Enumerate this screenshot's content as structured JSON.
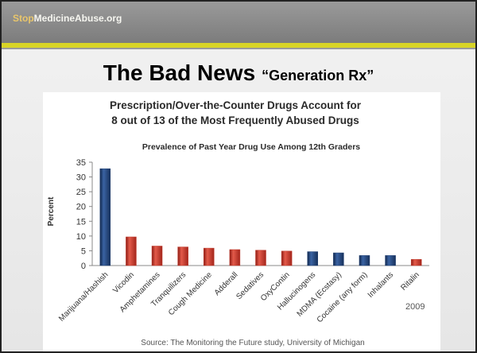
{
  "header": {
    "brand_accent": "Stop",
    "brand_rest": "MedicineAbuse.org"
  },
  "title": {
    "main": "The Bad News",
    "sub": "“Generation Rx”"
  },
  "chart_data": {
    "type": "bar",
    "title_line1": "Prescription/Over-the-Counter Drugs Account for",
    "title_line2": "8 out of 13 of the Most Frequently Abused Drugs",
    "subtitle": "Prevalence of Past Year Drug Use Among 12th Graders",
    "ylabel": "Percent",
    "ylim": [
      0,
      35
    ],
    "yticks": [
      0,
      5,
      10,
      15,
      20,
      25,
      30,
      35
    ],
    "categories": [
      "Marijuana/Hashish",
      "Vicodin",
      "Amphetamines",
      "Tranquilizers",
      "Cough Medicine",
      "Adderall",
      "Sedatives",
      "OxyContin",
      "Hallucinogens",
      "MDMA (Ecstasy)",
      "Cocaine (any form)",
      "Inhalants",
      "Ritalin"
    ],
    "values": [
      32.8,
      9.7,
      6.6,
      6.3,
      5.9,
      5.4,
      5.2,
      4.9,
      4.7,
      4.3,
      3.4,
      3.4,
      2.1
    ],
    "bar_kind": [
      "illicit",
      "rx",
      "rx",
      "rx",
      "rx",
      "rx",
      "rx",
      "rx",
      "illicit",
      "illicit",
      "illicit",
      "illicit",
      "rx"
    ],
    "colors": {
      "rx": "#c0392b",
      "illicit": "#1f3f73"
    },
    "year": "2009",
    "source": "Source: The Monitoring the Future study, University of Michigan"
  }
}
